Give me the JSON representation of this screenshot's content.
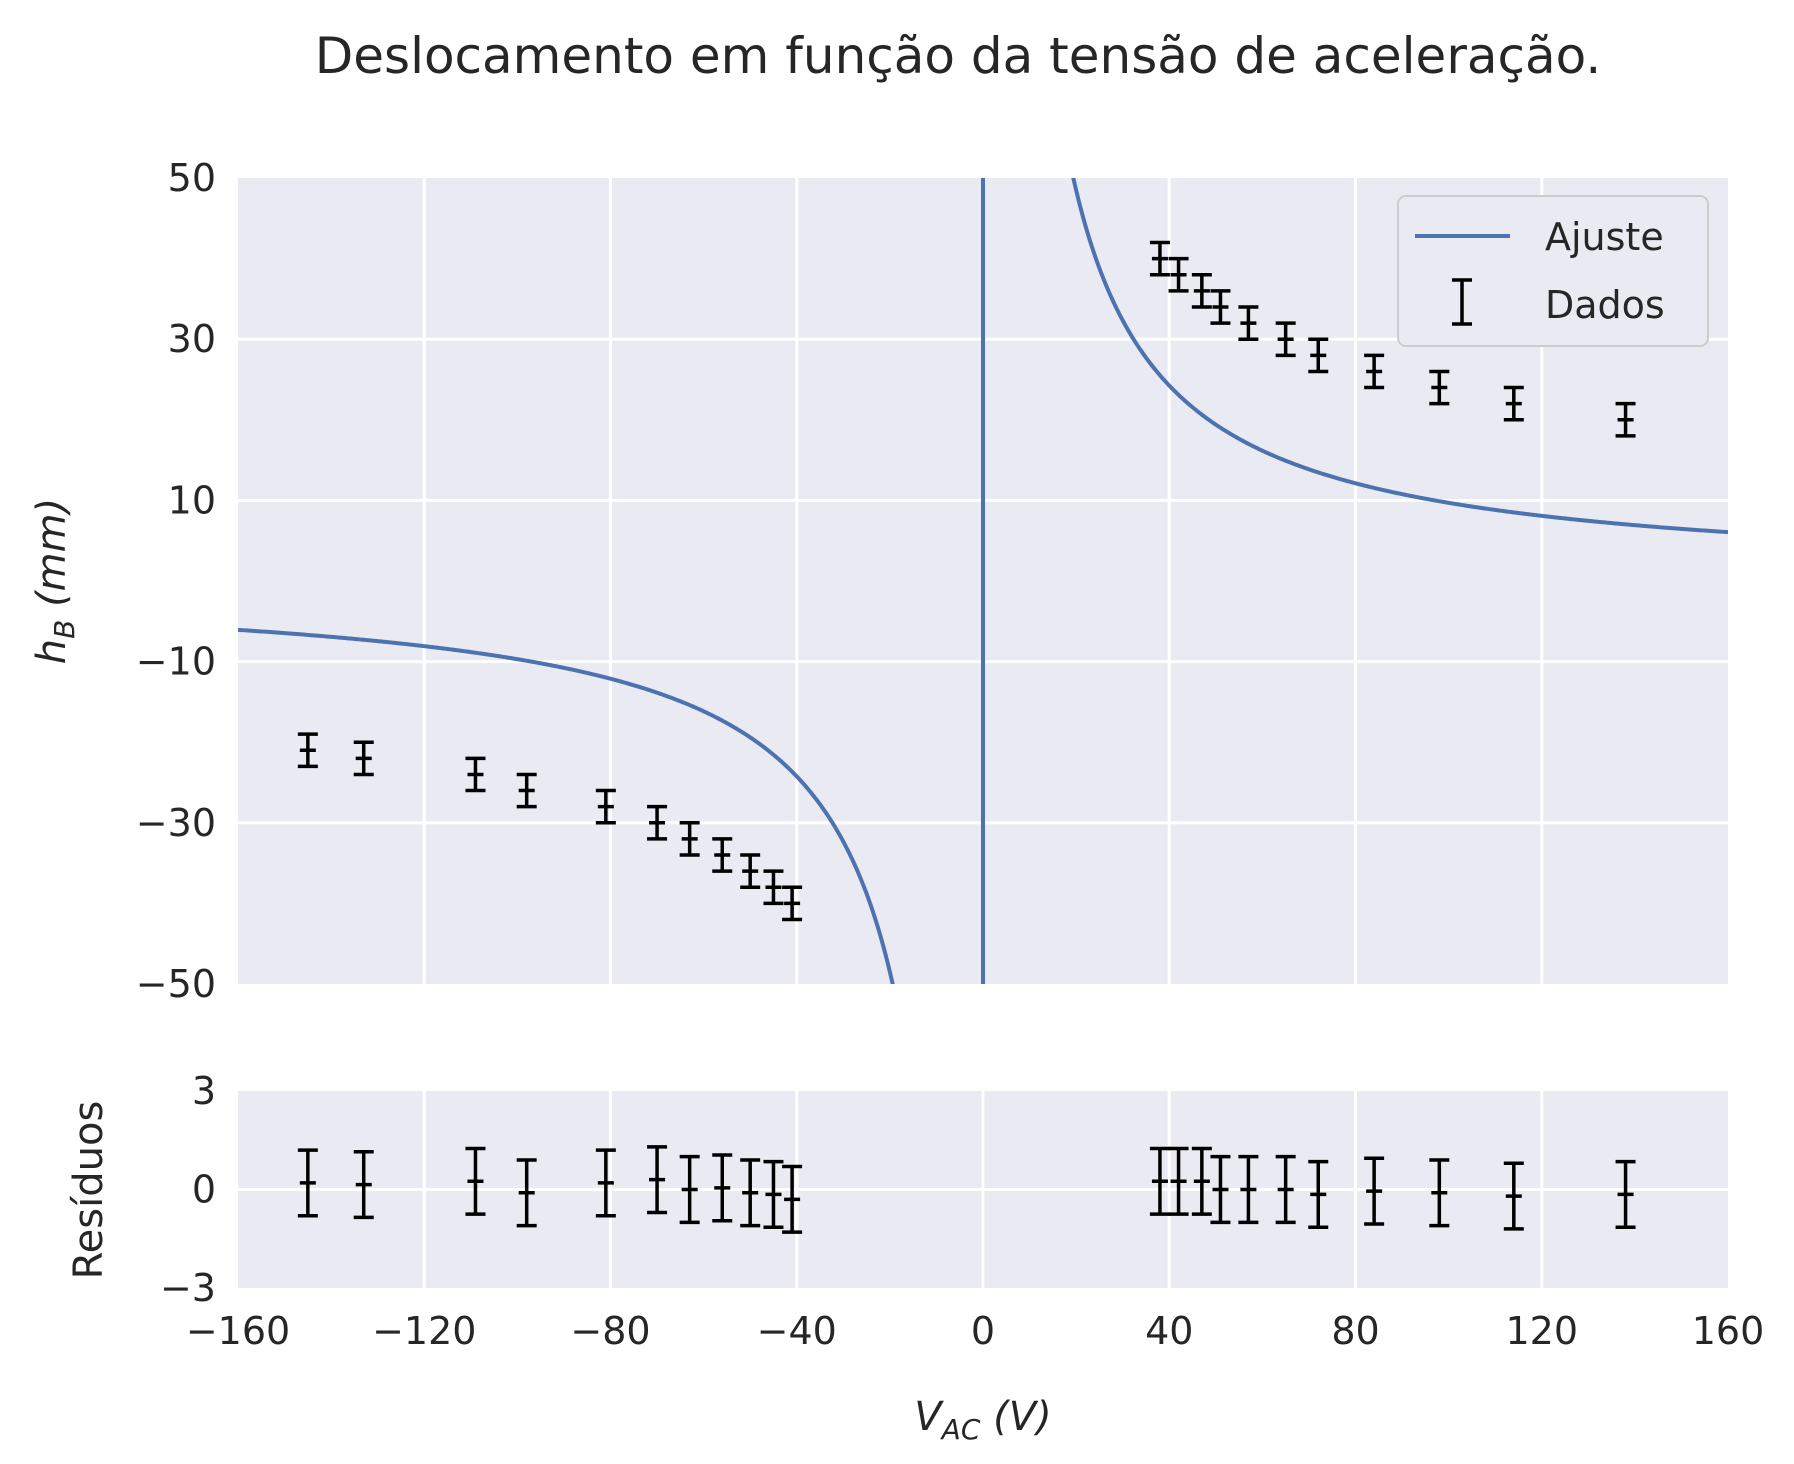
{
  "chart_data": [
    {
      "type": "scatter",
      "title": "Deslocamento em função da tensão de aceleração.",
      "ylabel_main": "h",
      "ylabel_sub": "B",
      "ylabel_unit": " (mm)",
      "xlim": [
        -160,
        160
      ],
      "ylim": [
        -50,
        50
      ],
      "xticks": [
        -160,
        -120,
        -80,
        -40,
        0,
        40,
        80,
        120,
        160
      ],
      "xtick_labels": [
        "−160",
        "−120",
        "−80",
        "−40",
        "0",
        "40",
        "80",
        "120",
        "160"
      ],
      "yticks": [
        -50,
        -30,
        -10,
        10,
        30,
        50
      ],
      "ytick_labels": [
        "−50",
        "−30",
        "−10",
        "10",
        "30",
        "50"
      ],
      "grid": true,
      "legend": {
        "placement": "top-right",
        "fit_label": "Ajuste",
        "data_label": "Dados"
      },
      "fit": {
        "model": "a/x",
        "a": 970,
        "asymptote_x": 0,
        "color": "#4c72b0"
      },
      "points": [
        {
          "x": -145,
          "y": -21,
          "err": 2
        },
        {
          "x": -133,
          "y": -22,
          "err": 2
        },
        {
          "x": -109,
          "y": -24,
          "err": 2
        },
        {
          "x": -98,
          "y": -26,
          "err": 2
        },
        {
          "x": -81,
          "y": -28,
          "err": 2
        },
        {
          "x": -70,
          "y": -30,
          "err": 2
        },
        {
          "x": -63,
          "y": -32,
          "err": 2
        },
        {
          "x": -56,
          "y": -34,
          "err": 2
        },
        {
          "x": -50,
          "y": -36,
          "err": 2
        },
        {
          "x": -45,
          "y": -38,
          "err": 2
        },
        {
          "x": -41,
          "y": -40,
          "err": 2
        },
        {
          "x": 38,
          "y": 40,
          "err": 2
        },
        {
          "x": 42,
          "y": 38,
          "err": 2
        },
        {
          "x": 47,
          "y": 36,
          "err": 2
        },
        {
          "x": 51,
          "y": 34,
          "err": 2
        },
        {
          "x": 57,
          "y": 32,
          "err": 2
        },
        {
          "x": 65,
          "y": 30,
          "err": 2
        },
        {
          "x": 72,
          "y": 28,
          "err": 2
        },
        {
          "x": 84,
          "y": 26,
          "err": 2
        },
        {
          "x": 98,
          "y": 24,
          "err": 2
        },
        {
          "x": 114,
          "y": 22,
          "err": 2
        },
        {
          "x": 138,
          "y": 20,
          "err": 2
        }
      ],
      "color": "#000000"
    },
    {
      "type": "scatter",
      "ylabel": "Resíduos",
      "xlabel_main": "V",
      "xlabel_sub": "AC",
      "xlabel_unit": " (V)",
      "xlim": [
        -160,
        160
      ],
      "ylim": [
        -3,
        3
      ],
      "yticks": [
        -3,
        0,
        3
      ],
      "ytick_labels": [
        "−3",
        "0",
        "3"
      ],
      "grid": true,
      "points": [
        {
          "x": -145,
          "y": 0.2,
          "err": 1.0
        },
        {
          "x": -133,
          "y": 0.15,
          "err": 1.0
        },
        {
          "x": -109,
          "y": 0.25,
          "err": 1.0
        },
        {
          "x": -98,
          "y": -0.1,
          "err": 1.0
        },
        {
          "x": -81,
          "y": 0.2,
          "err": 1.0
        },
        {
          "x": -70,
          "y": 0.3,
          "err": 1.0
        },
        {
          "x": -63,
          "y": 0.0,
          "err": 1.0
        },
        {
          "x": -56,
          "y": 0.05,
          "err": 1.0
        },
        {
          "x": -50,
          "y": -0.1,
          "err": 1.0
        },
        {
          "x": -45,
          "y": -0.15,
          "err": 1.0
        },
        {
          "x": -41,
          "y": -0.3,
          "err": 1.0
        },
        {
          "x": 38,
          "y": 0.25,
          "err": 1.0
        },
        {
          "x": 42,
          "y": 0.25,
          "err": 1.0
        },
        {
          "x": 47,
          "y": 0.25,
          "err": 1.0
        },
        {
          "x": 51,
          "y": 0.0,
          "err": 1.0
        },
        {
          "x": 57,
          "y": 0.0,
          "err": 1.0
        },
        {
          "x": 65,
          "y": 0.0,
          "err": 1.0
        },
        {
          "x": 72,
          "y": -0.15,
          "err": 1.0
        },
        {
          "x": 84,
          "y": -0.05,
          "err": 1.0
        },
        {
          "x": 98,
          "y": -0.1,
          "err": 1.0
        },
        {
          "x": 114,
          "y": -0.2,
          "err": 1.0
        },
        {
          "x": 138,
          "y": -0.15,
          "err": 1.0
        }
      ],
      "color": "#000000"
    }
  ]
}
